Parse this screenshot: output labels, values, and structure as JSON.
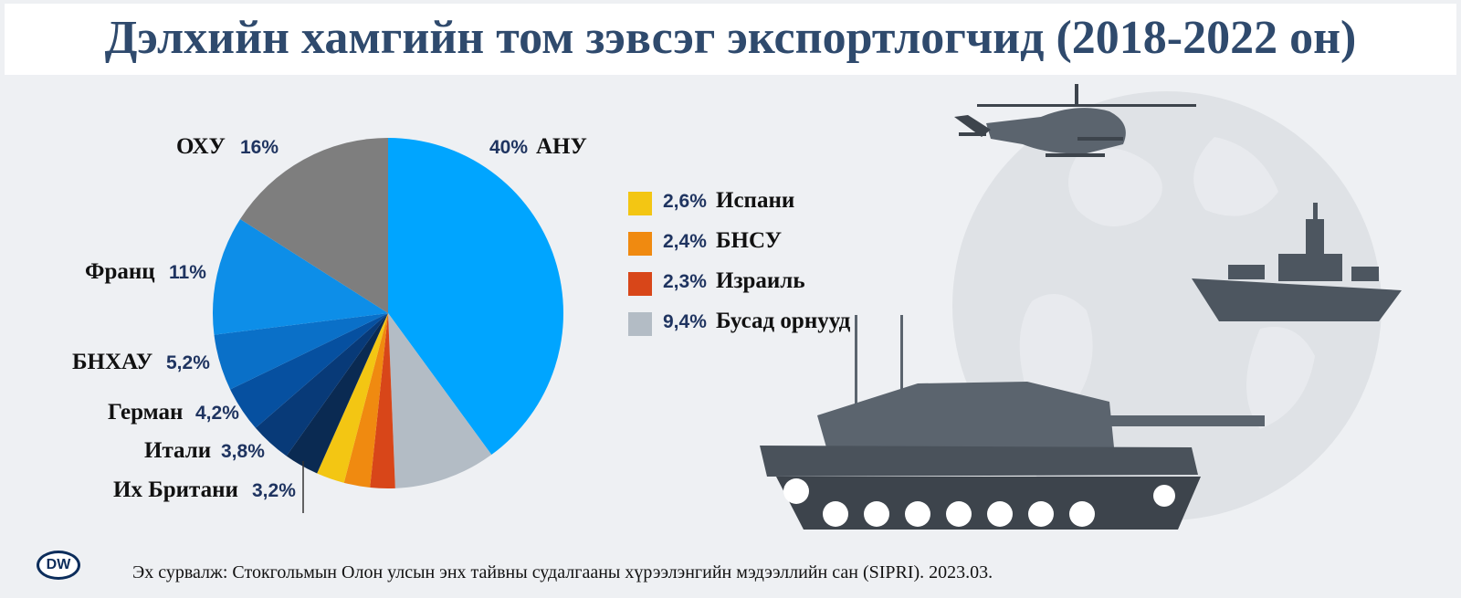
{
  "title": "Дэлхийн хамгийн том зэвсэг экспортлогчид (2018-2022 он)",
  "source": "Эх сурвалж: Стокгольмын Олон улсын энх тайвны судалгааны хүрээлэнгийн мэдээллийн сан (SIPRI). 2023.03.",
  "logo_text": "DW",
  "chart_data": {
    "type": "pie",
    "unit": "%",
    "slices": [
      {
        "label": "АНУ",
        "value": 40,
        "value_label": "40%",
        "color": "#00a5ff"
      },
      {
        "label": "Бусад орнууд",
        "value": 9.4,
        "value_label": "9,4%",
        "color": "#b3bcc5"
      },
      {
        "label": "Израиль",
        "value": 2.3,
        "value_label": "2,3%",
        "color": "#d84619"
      },
      {
        "label": "БНСУ",
        "value": 2.4,
        "value_label": "2,4%",
        "color": "#f08a10"
      },
      {
        "label": "Испани",
        "value": 2.6,
        "value_label": "2,6%",
        "color": "#f3c613"
      },
      {
        "label": "Их Британи",
        "value": 3.2,
        "value_label": "3,2%",
        "color": "#0a2a52"
      },
      {
        "label": "Итали",
        "value": 3.8,
        "value_label": "3,8%",
        "color": "#083a78"
      },
      {
        "label": "Герман",
        "value": 4.2,
        "value_label": "4,2%",
        "color": "#0650a0"
      },
      {
        "label": "БНХАУ",
        "value": 5.2,
        "value_label": "5,2%",
        "color": "#0a70c8"
      },
      {
        "label": "Франц",
        "value": 11,
        "value_label": "11%",
        "color": "#0d8ee8"
      },
      {
        "label": "ОХУ",
        "value": 16,
        "value_label": "16%",
        "color": "#7e7e7e"
      }
    ],
    "legend": [
      {
        "value_label": "2,6%",
        "label": "Испани",
        "color": "#f3c613"
      },
      {
        "value_label": "2,4%",
        "label": "БНСУ",
        "color": "#f08a10"
      },
      {
        "value_label": "2,3%",
        "label": "Израиль",
        "color": "#d84619"
      },
      {
        "value_label": "9,4%",
        "label": "Бусад орнууд",
        "color": "#b3bcc5"
      }
    ]
  },
  "illustration": {
    "icons": [
      "globe-icon",
      "helicopter-icon",
      "warship-icon",
      "tank-icon"
    ],
    "colors": {
      "globe": "#dfe2e6",
      "vehicle": "#5b646e",
      "vehicle_dark": "#3d444c"
    }
  }
}
